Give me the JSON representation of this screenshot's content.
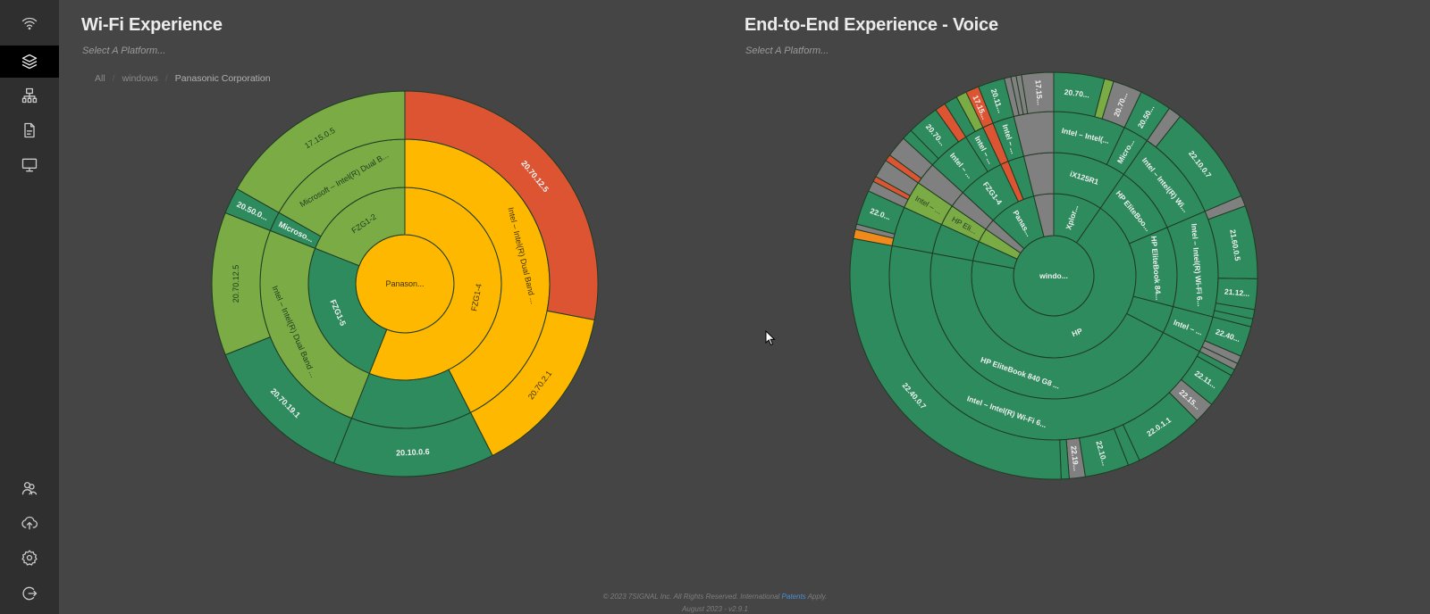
{
  "sidebar": {
    "items": [
      {
        "name": "wifi",
        "icon": "wifi-icon",
        "active": false
      },
      {
        "name": "layers",
        "icon": "layers-icon",
        "active": true
      },
      {
        "name": "network",
        "icon": "network-icon",
        "active": false
      },
      {
        "name": "report",
        "icon": "document-icon",
        "active": false
      },
      {
        "name": "monitor",
        "icon": "monitor-icon",
        "active": false
      },
      {
        "name": "users",
        "icon": "users-icon",
        "active": false
      },
      {
        "name": "upload",
        "icon": "cloud-upload-icon",
        "active": false
      },
      {
        "name": "settings",
        "icon": "gear-icon",
        "active": false
      },
      {
        "name": "logout",
        "icon": "logout-icon",
        "active": false
      }
    ]
  },
  "wifi_panel": {
    "title": "Wi-Fi Experience",
    "subtitle": "Select A Platform...",
    "breadcrumb": [
      "All",
      "windows",
      "Panasonic Corporation"
    ]
  },
  "voice_panel": {
    "title": "End-to-End Experience - Voice",
    "subtitle": "Select A Platform..."
  },
  "footer": {
    "copyright_pre": "© 2023 7SIGNAL Inc. All Rights Reserved. International ",
    "patents_link": "Patents",
    "copyright_post": " Apply.",
    "version": "August 2023 - v2.9.1"
  },
  "colors": {
    "good": "#2e8b5e",
    "fair": "#7aab45",
    "warn": "#ffb800",
    "poor": "#dd5433",
    "orange": "#f08a1c",
    "nodata": "#808080",
    "stroke": "#1f3b22"
  },
  "chart_data": [
    {
      "type": "sunburst",
      "title": "Wi-Fi Experience",
      "root": {
        "label": "Panason...",
        "status": "warn",
        "children": [
          {
            "label": "FZG1-4",
            "status": "warn",
            "children": [
              {
                "label": "Intel – Intel(R) Dual Band ...",
                "status": "warn",
                "children": [
                  {
                    "label": "20.70.12.5",
                    "status": "poor",
                    "value": 28
                  },
                  {
                    "label": "20.70.2.1",
                    "status": "warn",
                    "value": 14.5
                  }
                ]
              },
              {
                "label": "",
                "status": "good",
                "children": [
                  {
                    "label": "20.10.0.6",
                    "status": "good",
                    "value": 13.5
                  }
                ]
              }
            ]
          },
          {
            "label": "FZG1-5",
            "status": "good",
            "children": [
              {
                "label": "Intel – Intel(R) Dual Band ...",
                "status": "fair",
                "children": [
                  {
                    "label": "20.70.19.1",
                    "status": "good",
                    "value": 13
                  },
                  {
                    "label": "20.70.12.5",
                    "status": "fair",
                    "value": 12
                  }
                ]
              }
            ]
          },
          {
            "label": "FZG1-2",
            "status": "fair",
            "children": [
              {
                "label": "Microso...",
                "status": "good",
                "children": [
                  {
                    "label": "20.50.0...",
                    "status": "good",
                    "value": 2.2
                  }
                ]
              },
              {
                "label": "Microsoft – Intel(R) Dual B...",
                "status": "fair",
                "children": [
                  {
                    "label": "17.15.0.5",
                    "status": "fair",
                    "value": 16.8
                  }
                ]
              }
            ]
          }
        ]
      }
    },
    {
      "type": "sunburst",
      "title": "End-to-End Experience - Voice",
      "root": {
        "label": "windo...",
        "status": "good",
        "children": [
          {
            "label": "Xplor...",
            "status": "good",
            "children": [
              {
                "label": "iX125R1",
                "status": "good",
                "children": [
                  {
                    "label": "Intel – Intel(...",
                    "status": "good",
                    "children": [
                      {
                        "label": "20.70...",
                        "status": "good",
                        "value": 3.8
                      },
                      {
                        "label": "",
                        "status": "fair",
                        "value": 0.7
                      },
                      {
                        "label": "20.70...",
                        "status": "nodata",
                        "value": 2.2
                      }
                    ]
                  },
                  {
                    "label": "Micro...",
                    "status": "good",
                    "children": [
                      {
                        "label": "20.50...",
                        "status": "good",
                        "value": 2.4
                      }
                    ]
                  }
                ]
              }
            ]
          },
          {
            "label": "HP",
            "status": "good",
            "children": [
              {
                "label": "HP EliteBoo...",
                "status": "good",
                "children": [
                  {
                    "label": "Intel – Intel(R) Wi...",
                    "status": "good",
                    "children": [
                      {
                        "label": "",
                        "status": "nodata",
                        "value": 1
                      },
                      {
                        "label": "22.10.0.7",
                        "status": "good",
                        "value": 7.5
                      }
                    ]
                  }
                ]
              },
              {
                "label": "HP EliteBook 84...",
                "status": "good",
                "children": [
                  {
                    "label": "Intel – Intel(R) Wi-Fi 6...",
                    "status": "good",
                    "children": [
                      {
                        "label": "",
                        "status": "nodata",
                        "value": 0.8
                      },
                      {
                        "label": "21.60.0.5",
                        "status": "good",
                        "value": 5.5
                      },
                      {
                        "label": "21.12...",
                        "status": "good",
                        "value": 2.3
                      },
                      {
                        "label": "",
                        "status": "good",
                        "value": 0.7
                      },
                      {
                        "label": "",
                        "status": "good",
                        "value": 0.6
                      }
                    ]
                  }
                ]
              },
              {
                "label": "",
                "status": "good",
                "children": [
                  {
                    "label": "Intel – ...",
                    "status": "good",
                    "children": [
                      {
                        "label": "22.40...",
                        "status": "good",
                        "value": 2.3
                      },
                      {
                        "label": "",
                        "status": "nodata",
                        "value": 0.6
                      },
                      {
                        "label": "",
                        "status": "nodata",
                        "value": 0.5
                      }
                    ]
                  }
                ]
              },
              {
                "label": "HP EliteBook 840 G8 ...",
                "status": "good",
                "children": [
                  {
                    "label": "Intel – Intel(R) Wi-Fi 6...",
                    "status": "good",
                    "children": [
                      {
                        "label": "",
                        "status": "good",
                        "value": 0.5
                      },
                      {
                        "label": "22.11...",
                        "status": "good",
                        "value": 2.6
                      },
                      {
                        "label": "22.15...",
                        "status": "nodata",
                        "value": 1.6
                      },
                      {
                        "label": "22.0.1.1",
                        "status": "good",
                        "value": 5.2
                      },
                      {
                        "label": "",
                        "status": "good",
                        "value": 0.9
                      },
                      {
                        "label": "22.10...",
                        "status": "good",
                        "value": 3.3
                      },
                      {
                        "label": "22.19...",
                        "status": "nodata",
                        "value": 1.2
                      },
                      {
                        "label": "",
                        "status": "good",
                        "value": 0.6
                      },
                      {
                        "label": "22.40.0.7",
                        "status": "good",
                        "value": 27
                      }
                    ]
                  }
                ]
              }
            ]
          },
          {
            "label": "",
            "status": "good",
            "children": [
              {
                "label": "",
                "status": "good",
                "children": [
                  {
                    "label": "",
                    "status": "good",
                    "children": [
                      {
                        "label": "",
                        "status": "orange",
                        "value": 0.7
                      },
                      {
                        "label": "",
                        "status": "nodata",
                        "value": 0.4
                      },
                      {
                        "label": "22.0...",
                        "status": "good",
                        "value": 2.6
                      }
                    ]
                  }
                ]
              }
            ]
          },
          {
            "label": "",
            "status": "fair",
            "children": [
              {
                "label": "HP Eli...",
                "status": "fair",
                "children": [
                  {
                    "label": "Intel – ...",
                    "status": "fair",
                    "children": [
                      {
                        "label": "",
                        "status": "nodata",
                        "value": 0.8
                      },
                      {
                        "label": "",
                        "status": "poor",
                        "value": 0.4
                      },
                      {
                        "label": "",
                        "status": "nodata",
                        "value": 1.4
                      }
                    ]
                  }
                ]
              }
            ]
          },
          {
            "label": "",
            "status": "nodata",
            "children": [
              {
                "label": "",
                "status": "nodata",
                "children": [
                  {
                    "label": "",
                    "status": "nodata",
                    "children": [
                      {
                        "label": "",
                        "status": "poor",
                        "value": 0.5
                      },
                      {
                        "label": "",
                        "status": "nodata",
                        "value": 1.6
                      }
                    ]
                  }
                ]
              }
            ]
          },
          {
            "label": "Panas...",
            "status": "good",
            "children": [
              {
                "label": "FZG1-4",
                "status": "good",
                "children": [
                  {
                    "label": "Intel – ...",
                    "status": "good",
                    "children": [
                      {
                        "label": "",
                        "status": "good",
                        "value": 0.8
                      },
                      {
                        "label": "20.70...",
                        "status": "good",
                        "value": 2.4
                      },
                      {
                        "label": "",
                        "status": "poor",
                        "value": 0.8
                      }
                    ]
                  },
                  {
                    "label": "Intel – ...",
                    "status": "good",
                    "children": [
                      {
                        "label": "",
                        "status": "good",
                        "value": 1.0
                      },
                      {
                        "label": "",
                        "status": "fair",
                        "value": 0.8
                      }
                    ]
                  }
                ]
              },
              {
                "label": "",
                "status": "poor",
                "children": [
                  {
                    "label": "",
                    "status": "poor",
                    "children": [
                      {
                        "label": "17.15...",
                        "status": "poor",
                        "value": 1.0
                      }
                    ]
                  }
                ]
              },
              {
                "label": "",
                "status": "good",
                "children": [
                  {
                    "label": "Intel – ...",
                    "status": "good",
                    "children": [
                      {
                        "label": "20.11...",
                        "status": "good",
                        "value": 2.0
                      }
                    ]
                  }
                ]
              }
            ]
          },
          {
            "label": "",
            "status": "nodata",
            "children": [
              {
                "label": "",
                "status": "nodata",
                "children": [
                  {
                    "label": "",
                    "status": "nodata",
                    "children": [
                      {
                        "label": "",
                        "status": "nodata",
                        "value": 0.5
                      },
                      {
                        "label": "",
                        "status": "nodata",
                        "value": 0.4
                      },
                      {
                        "label": "",
                        "status": "nodata",
                        "value": 0.4
                      },
                      {
                        "label": "17.15...",
                        "status": "nodata",
                        "value": 2.4
                      }
                    ]
                  }
                ]
              }
            ]
          }
        ]
      }
    }
  ]
}
